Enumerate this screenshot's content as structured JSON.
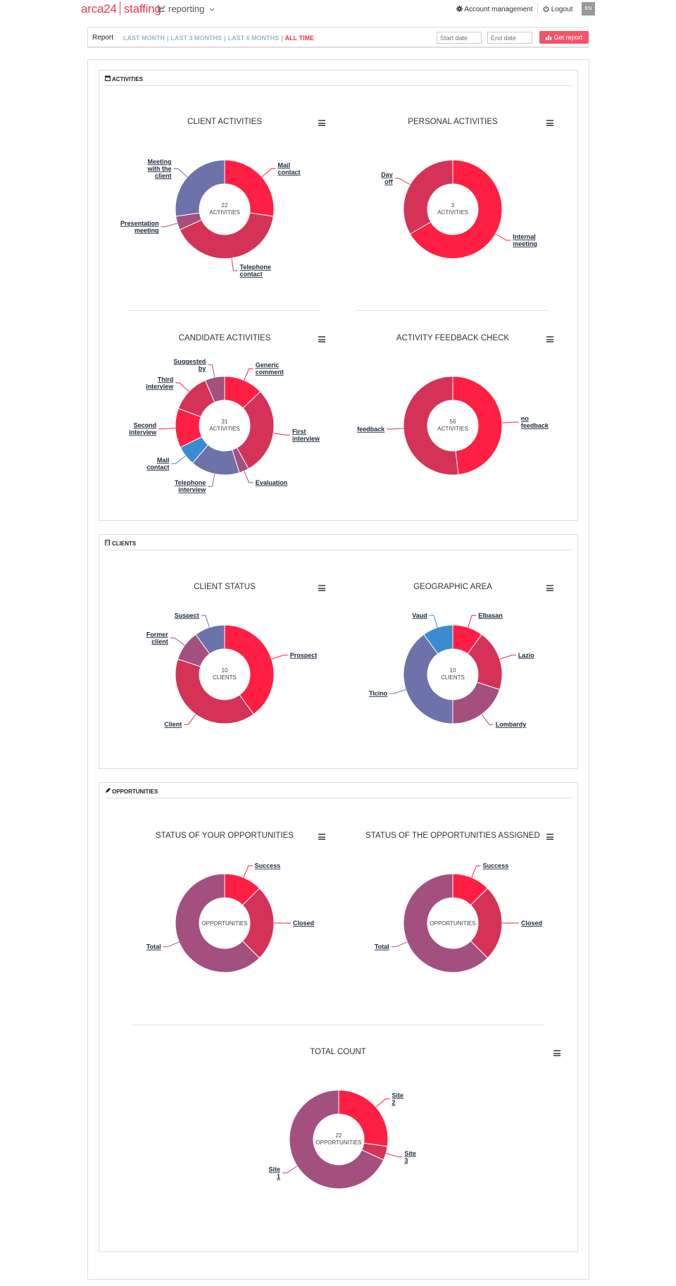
{
  "header": {
    "logo_left": "arca24",
    "logo_right": "staffing",
    "module": "reporting",
    "account": "Account management",
    "logout": "Logout",
    "lang": "EN"
  },
  "filter": {
    "title": "Report",
    "periods": [
      "LAST MONTH",
      "LAST 3 MONTHS",
      "LAST 6 MONTHS",
      "ALL TIME"
    ],
    "active_period": "ALL TIME",
    "start_placeholder": "Start date",
    "end_placeholder": "End date",
    "button": "Get report"
  },
  "colors": {
    "red": "#ff1f43",
    "crimson": "#d43357",
    "purple": "#a3507f",
    "slate": "#6e72ab",
    "blue": "#3a8bd0",
    "accent": "#e8334a"
  },
  "sections": {
    "activities": "ACTIVITIES",
    "clients": "CLIENTS",
    "opportunities": "OPPORTUNITIES"
  },
  "chart_data": [
    {
      "id": "client-activities",
      "type": "pie",
      "title": "CLIENT ACTIVITIES",
      "center": [
        "22",
        "ACTIVITIES"
      ],
      "slices": [
        {
          "label": "Mail contact",
          "value": 6,
          "color": "#ff1f43"
        },
        {
          "label": "Telephone contact",
          "value": 9,
          "color": "#d43357"
        },
        {
          "label": "Presentation meeting",
          "value": 1,
          "color": "#a3507f"
        },
        {
          "label": "Meeting with the client",
          "value": 6,
          "color": "#6e72ab"
        }
      ]
    },
    {
      "id": "personal-activities",
      "type": "pie",
      "title": "PERSONAL ACTIVITIES",
      "center": [
        "3",
        "ACTIVITIES"
      ],
      "slices": [
        {
          "label": "Internal meeting",
          "value": 2,
          "color": "#ff1f43"
        },
        {
          "label": "Day off",
          "value": 1,
          "color": "#d43357"
        }
      ]
    },
    {
      "id": "candidate-activities",
      "type": "pie",
      "title": "CANDIDATE ACTIVITIES",
      "center": [
        "31",
        "ACTIVITIES"
      ],
      "slices": [
        {
          "label": "Generic comment",
          "value": 4,
          "color": "#ff1f43"
        },
        {
          "label": "First interview",
          "value": 9,
          "color": "#d43357"
        },
        {
          "label": "Evaluation",
          "value": 1,
          "color": "#a3507f"
        },
        {
          "label": "Telephone interview",
          "value": 5,
          "color": "#6e72ab"
        },
        {
          "label": "Mail contact",
          "value": 2,
          "color": "#3a8bd0"
        },
        {
          "label": "Second interview",
          "value": 4,
          "color": "#ff1f43"
        },
        {
          "label": "Third interview",
          "value": 4,
          "color": "#d43357"
        },
        {
          "label": "Suggested by",
          "value": 2,
          "color": "#a3507f"
        }
      ]
    },
    {
      "id": "activity-feedback",
      "type": "pie",
      "title": "ACTIVITY FEEDBACK CHECK",
      "center": [
        "56",
        "ACTIVITIES"
      ],
      "slices": [
        {
          "label": "no feedback",
          "value": 27,
          "color": "#ff1f43"
        },
        {
          "label": "feedback",
          "value": 29,
          "color": "#d43357"
        }
      ]
    },
    {
      "id": "client-status",
      "type": "pie",
      "title": "CLIENT STATUS",
      "center": [
        "10",
        "CLIENTS"
      ],
      "slices": [
        {
          "label": "Prospect",
          "value": 4,
          "color": "#ff1f43"
        },
        {
          "label": "Client",
          "value": 4,
          "color": "#d43357"
        },
        {
          "label": "Former client",
          "value": 1,
          "color": "#a3507f"
        },
        {
          "label": "Suspect",
          "value": 1,
          "color": "#6e72ab"
        }
      ]
    },
    {
      "id": "geographic-area",
      "type": "pie",
      "title": "GEOGRAPHIC AREA",
      "center": [
        "10",
        "CLIENTS"
      ],
      "slices": [
        {
          "label": "Elbasan",
          "value": 1,
          "color": "#ff1f43"
        },
        {
          "label": "Lazio",
          "value": 2,
          "color": "#d43357"
        },
        {
          "label": "Lombardy",
          "value": 2,
          "color": "#a3507f"
        },
        {
          "label": "Ticino",
          "value": 4,
          "color": "#6e72ab"
        },
        {
          "label": "Vaud",
          "value": 1,
          "color": "#3a8bd0"
        }
      ]
    },
    {
      "id": "status-your-opportunities",
      "type": "pie",
      "title": "STATUS OF YOUR OPPORTUNITIES",
      "center": [
        "",
        "OPPORTUNITIES"
      ],
      "slices": [
        {
          "label": "Success",
          "value": 1,
          "color": "#ff1f43"
        },
        {
          "label": "Closed",
          "value": 2,
          "color": "#d43357"
        },
        {
          "label": "Total",
          "value": 5,
          "color": "#a3507f"
        }
      ]
    },
    {
      "id": "status-opportunities-assigned",
      "type": "pie",
      "title": "STATUS OF THE OPPORTUNITIES ASSIGNED",
      "center": [
        "",
        "OPPORTUNITIES"
      ],
      "slices": [
        {
          "label": "Success",
          "value": 1,
          "color": "#ff1f43"
        },
        {
          "label": "Closed",
          "value": 2,
          "color": "#d43357"
        },
        {
          "label": "Total",
          "value": 5,
          "color": "#a3507f"
        }
      ]
    },
    {
      "id": "total-count",
      "type": "pie",
      "title": "TOTAL COUNT",
      "center": [
        "22",
        "OPPORTUNITIES"
      ],
      "slices": [
        {
          "label": "Site 2",
          "value": 6,
          "color": "#ff1f43"
        },
        {
          "label": "Site 3",
          "value": 1,
          "color": "#d43357"
        },
        {
          "label": "Site 1",
          "value": 15,
          "color": "#a3507f"
        }
      ]
    }
  ]
}
